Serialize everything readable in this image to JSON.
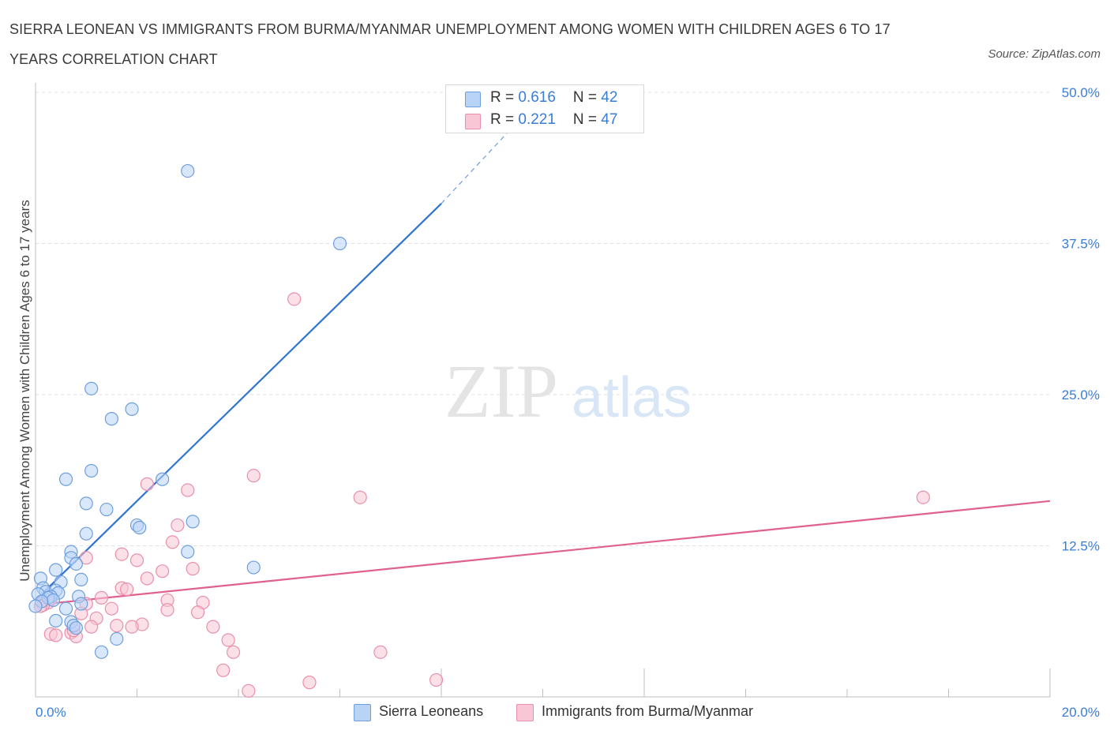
{
  "header": {
    "title": "SIERRA LEONEAN VS IMMIGRANTS FROM BURMA/MYANMAR UNEMPLOYMENT AMONG WOMEN WITH CHILDREN AGES 6 TO 17 YEARS CORRELATION CHART",
    "source": "Source: ZipAtlas.com"
  },
  "watermark": {
    "zip": "ZIP",
    "atlas": "atlas"
  },
  "colors": {
    "blue_fill": "#b9d3f7",
    "blue_stroke": "#6e9fdc",
    "blue_line": "#2f74d0",
    "pink_fill": "#f8c6d5",
    "pink_stroke": "#e890ab",
    "pink_line": "#e0608f",
    "tick_label": "#3a7dd8",
    "grid": "#e2e2e2"
  },
  "legend": {
    "rows": [
      {
        "r_label": "R = ",
        "r_value": "0.616",
        "n_label": "N = ",
        "n_value": "42"
      },
      {
        "r_label": "R = ",
        "r_value": "0.221",
        "n_label": "N = ",
        "n_value": "47"
      }
    ],
    "series_labels": [
      "Sierra Leoneans",
      "Immigrants from Burma/Myanmar"
    ]
  },
  "chart_data": {
    "type": "scatter",
    "title": "SIERRA LEONEAN VS IMMIGRANTS FROM BURMA/MYANMAR UNEMPLOYMENT AMONG WOMEN WITH CHILDREN AGES 6 TO 17 YEARS CORRELATION CHART",
    "xlabel": "",
    "ylabel": "Unemployment Among Women with Children Ages 6 to 17 years",
    "xlim": [
      0,
      20
    ],
    "ylim": [
      0,
      50
    ],
    "x_tick_labels": [
      {
        "value": 0,
        "label": "0.0%"
      },
      {
        "value": 20,
        "label": "20.0%"
      }
    ],
    "y_tick_labels": [
      {
        "value": 12.5,
        "label": "12.5%"
      },
      {
        "value": 25,
        "label": "25.0%"
      },
      {
        "value": 37.5,
        "label": "37.5%"
      },
      {
        "value": 50,
        "label": "50.0%"
      }
    ],
    "x_minor_ticks": [
      2,
      4,
      6,
      8,
      10,
      12,
      14,
      16,
      18,
      20
    ],
    "series": [
      {
        "name": "Sierra Leoneans",
        "color": "blue",
        "R": 0.616,
        "N": 42,
        "trend": {
          "x0": 0,
          "y0": 8.0,
          "x1": 8.0,
          "y1": 40.8,
          "dash_to_x": 9.4,
          "dash_to_y": 47.1
        },
        "points": [
          [
            3.0,
            43.5
          ],
          [
            6.0,
            37.5
          ],
          [
            1.1,
            25.5
          ],
          [
            1.5,
            23.0
          ],
          [
            1.9,
            23.8
          ],
          [
            0.6,
            18.0
          ],
          [
            1.1,
            18.7
          ],
          [
            2.5,
            18.0
          ],
          [
            1.0,
            16.0
          ],
          [
            1.4,
            15.5
          ],
          [
            2.0,
            14.2
          ],
          [
            2.05,
            14.0
          ],
          [
            3.1,
            14.5
          ],
          [
            1.0,
            13.5
          ],
          [
            0.7,
            12.0
          ],
          [
            0.7,
            11.5
          ],
          [
            3.0,
            12.0
          ],
          [
            0.8,
            11.0
          ],
          [
            0.4,
            10.5
          ],
          [
            4.3,
            10.7
          ],
          [
            0.1,
            9.8
          ],
          [
            0.15,
            9.0
          ],
          [
            0.5,
            9.5
          ],
          [
            0.9,
            9.7
          ],
          [
            0.2,
            8.7
          ],
          [
            0.4,
            8.8
          ],
          [
            0.45,
            8.6
          ],
          [
            0.05,
            8.5
          ],
          [
            0.3,
            8.3
          ],
          [
            0.25,
            8.2
          ],
          [
            0.35,
            8.0
          ],
          [
            0.12,
            7.9
          ],
          [
            0.85,
            8.3
          ],
          [
            0.9,
            7.7
          ],
          [
            0.6,
            7.3
          ],
          [
            0.0,
            7.5
          ],
          [
            0.4,
            6.3
          ],
          [
            0.7,
            6.2
          ],
          [
            0.75,
            5.9
          ],
          [
            0.8,
            5.7
          ],
          [
            1.6,
            4.8
          ],
          [
            1.3,
            3.7
          ]
        ]
      },
      {
        "name": "Immigrants from Burma/Myanmar",
        "color": "pink",
        "R": 0.221,
        "N": 47,
        "trend": {
          "x0": 0,
          "y0": 7.6,
          "x1": 20,
          "y1": 16.2
        },
        "points": [
          [
            5.1,
            32.9
          ],
          [
            4.3,
            18.3
          ],
          [
            17.5,
            16.5
          ],
          [
            6.4,
            16.5
          ],
          [
            2.2,
            17.6
          ],
          [
            3.0,
            17.1
          ],
          [
            2.8,
            14.2
          ],
          [
            2.7,
            12.8
          ],
          [
            1.7,
            11.8
          ],
          [
            1.0,
            11.5
          ],
          [
            2.0,
            11.3
          ],
          [
            3.1,
            10.6
          ],
          [
            2.5,
            10.4
          ],
          [
            2.2,
            9.8
          ],
          [
            1.7,
            9.0
          ],
          [
            1.8,
            8.9
          ],
          [
            1.3,
            8.2
          ],
          [
            2.6,
            8.0
          ],
          [
            3.3,
            7.8
          ],
          [
            0.2,
            8.0
          ],
          [
            0.25,
            7.8
          ],
          [
            0.3,
            8.1
          ],
          [
            0.15,
            7.6
          ],
          [
            1.0,
            7.7
          ],
          [
            1.5,
            7.3
          ],
          [
            2.6,
            7.2
          ],
          [
            3.2,
            7.0
          ],
          [
            0.9,
            6.9
          ],
          [
            1.2,
            6.5
          ],
          [
            2.1,
            6.0
          ],
          [
            1.9,
            5.8
          ],
          [
            1.6,
            5.9
          ],
          [
            1.1,
            5.8
          ],
          [
            3.5,
            5.8
          ],
          [
            0.3,
            5.2
          ],
          [
            0.4,
            5.1
          ],
          [
            0.7,
            5.3
          ],
          [
            0.8,
            5.0
          ],
          [
            0.75,
            5.5
          ],
          [
            3.8,
            4.7
          ],
          [
            3.9,
            3.7
          ],
          [
            6.8,
            3.7
          ],
          [
            3.7,
            2.2
          ],
          [
            5.4,
            1.2
          ],
          [
            7.9,
            1.4
          ],
          [
            4.2,
            0.5
          ],
          [
            0.1,
            7.5
          ]
        ]
      }
    ]
  }
}
